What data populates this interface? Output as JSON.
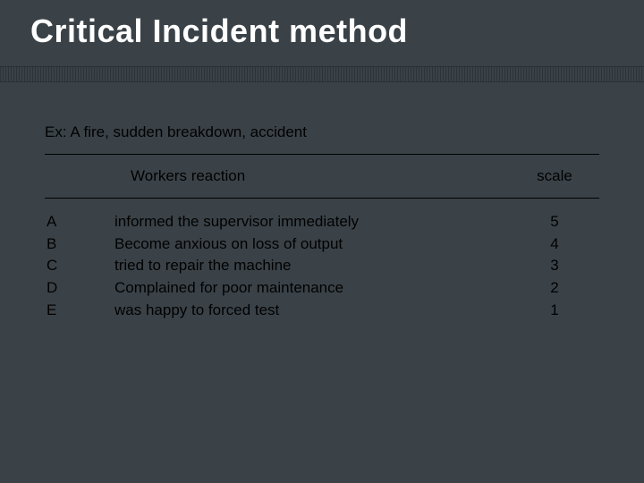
{
  "title": "Critical Incident method",
  "example": "Ex: A fire, sudden breakdown, accident",
  "headers": {
    "reaction": "Workers  reaction",
    "scale": "scale"
  },
  "rows": [
    {
      "label": "A",
      "reaction": "informed the supervisor immediately",
      "scale": "5"
    },
    {
      "label": "B",
      "reaction": "Become anxious on loss of output",
      "scale": "4"
    },
    {
      "label": "C",
      "reaction": "tried to repair the machine",
      "scale": "3"
    },
    {
      "label": "D",
      "reaction": "Complained for poor maintenance",
      "scale": "2"
    },
    {
      "label": "E",
      "reaction": "was happy to forced test",
      "scale": "1"
    }
  ],
  "colors": {
    "background": "#3a4248",
    "title_text": "#ffffff",
    "body_text": "#010101",
    "rule": "#000000"
  }
}
